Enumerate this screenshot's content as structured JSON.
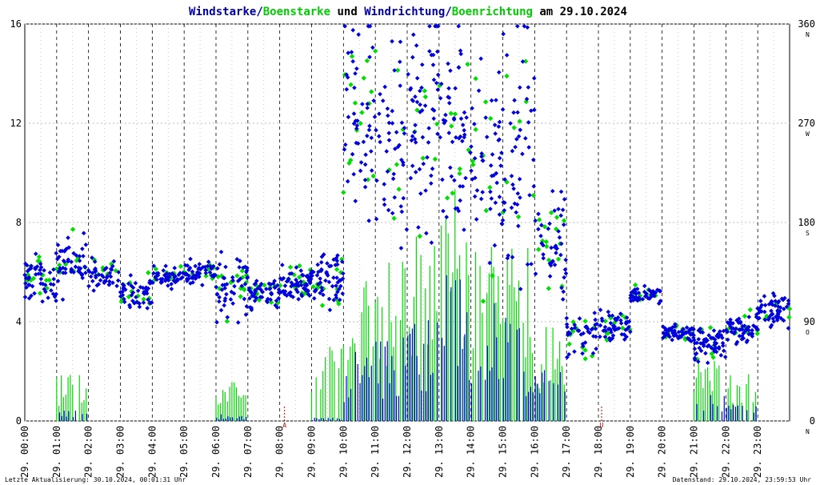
{
  "title": {
    "part1": "Windstarke",
    "sep1": "/",
    "part2": "Boenstarke",
    "part3": " und ",
    "part4": "Windrichtung",
    "sep2": "/",
    "part5": "Boenrichtung",
    "part6": " am 29.10.2024"
  },
  "colors": {
    "wind": "#0000dd",
    "gust": "#00dd00",
    "title_blue": "#0000aa",
    "title_green": "#00cc00",
    "grid": "#bbbbbb",
    "hour_line": "#000000",
    "marker": "#cc0000"
  },
  "footer": {
    "left": "Letzte Aktualisierung: 30.10.2024, 00:01:31 Uhr",
    "right": "Datenstand: 29.10.2024, 23:59:53 Uhr"
  },
  "chart_data": {
    "type": "scatter",
    "x_range_hours": [
      0,
      24
    ],
    "x_tick_labels": [
      "29. 00:00",
      "29. 01:00",
      "29. 02:00",
      "29. 03:00",
      "29. 04:00",
      "29. 05:00",
      "29. 06:00",
      "29. 07:00",
      "29. 08:00",
      "29. 09:00",
      "29. 10:00",
      "29. 11:00",
      "29. 12:00",
      "29. 13:00",
      "29. 14:00",
      "29. 15:00",
      "29. 16:00",
      "29. 17:00",
      "29. 18:00",
      "29. 19:00",
      "29. 20:00",
      "29. 21:00",
      "29. 22:00",
      "29. 23:00"
    ],
    "y_left": {
      "range": [
        0,
        16
      ],
      "ticks": [
        "0",
        "4",
        "8",
        "12",
        "16"
      ]
    },
    "y_right": {
      "range": [
        0,
        360
      ],
      "ticks": [
        "0",
        "90",
        "180",
        "270",
        "360"
      ],
      "compass": [
        "N",
        "O",
        "S",
        "W",
        "N"
      ]
    },
    "markers": [
      {
        "hour": 8.15,
        "label": "A"
      },
      {
        "hour": 18.1,
        "label": "U"
      }
    ],
    "grid": true,
    "series": [
      {
        "name": "Windstarke",
        "kind": "speed-bars",
        "color": "blue",
        "hourly_level": [
          0,
          0.3,
          0,
          0,
          0,
          0,
          0.2,
          0,
          0,
          0.1,
          2.0,
          2.5,
          3.5,
          4.5,
          3.5,
          3.0,
          1.5,
          0,
          0,
          0,
          0,
          0.8,
          0.5,
          0
        ]
      },
      {
        "name": "Boenstarke",
        "kind": "speed-bars",
        "color": "green",
        "hourly_level": [
          0,
          1.5,
          0,
          0,
          0,
          0,
          1.3,
          0,
          0,
          2.5,
          4.8,
          5.5,
          6.5,
          7.5,
          6.5,
          5.5,
          3.0,
          0,
          0,
          0,
          0,
          2.0,
          1.5,
          0
        ]
      },
      {
        "name": "Windrichtung",
        "kind": "direction-dots",
        "color": "blue",
        "hourly_mean_deg": [
          130,
          140,
          130,
          115,
          130,
          135,
          120,
          115,
          125,
          130,
          280,
          250,
          270,
          265,
          230,
          245,
          160,
          80,
          85,
          115,
          80,
          70,
          85,
          100
        ],
        "hourly_spread_deg": [
          15,
          20,
          12,
          12,
          8,
          8,
          20,
          12,
          12,
          20,
          70,
          70,
          70,
          70,
          80,
          80,
          30,
          15,
          10,
          5,
          5,
          12,
          10,
          12
        ]
      },
      {
        "name": "Boenrichtung",
        "kind": "direction-dots",
        "color": "green",
        "hourly_mean_deg": [
          130,
          140,
          130,
          115,
          130,
          135,
          120,
          115,
          125,
          130,
          280,
          250,
          270,
          265,
          230,
          245,
          160,
          80,
          85,
          115,
          80,
          70,
          85,
          100
        ],
        "hourly_spread_deg": [
          15,
          20,
          12,
          12,
          8,
          8,
          20,
          12,
          12,
          20,
          70,
          70,
          70,
          70,
          80,
          80,
          30,
          15,
          10,
          5,
          5,
          12,
          10,
          12
        ]
      }
    ]
  }
}
